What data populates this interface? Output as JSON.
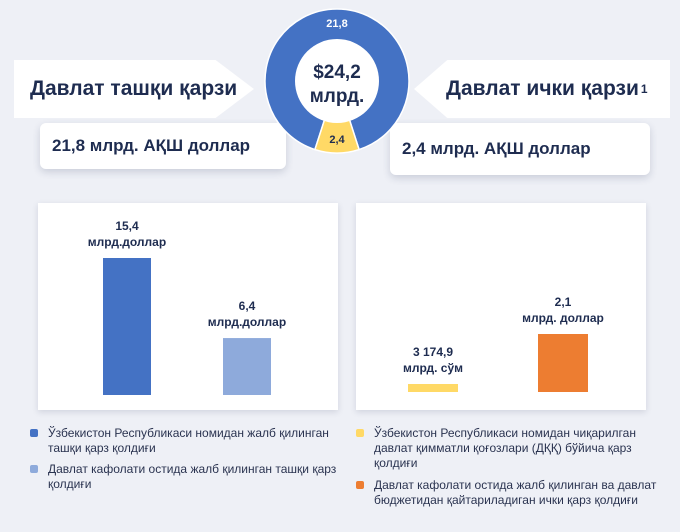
{
  "header": {
    "external_title": "Давлат ташқи қарзи",
    "internal_title": "Давлат ички қарзи",
    "internal_sup": "1",
    "external_amount": "21,8 млрд. АҚШ доллар",
    "internal_amount": "2,4 млрд. АҚШ доллар"
  },
  "colors": {
    "external_dark": "#4472c4",
    "external_light": "#8eaadb",
    "internal_yellow": "#ffd966",
    "internal_orange": "#ed7d31"
  },
  "chart_data": [
    {
      "type": "pie",
      "title": "",
      "center_label_line1": "$24,2",
      "center_label_line2": "млрд.",
      "slices": [
        {
          "label": "21,8",
          "value": 21.8,
          "color": "#4472c4"
        },
        {
          "label": "2,4",
          "value": 2.4,
          "color": "#ffd966"
        }
      ]
    },
    {
      "type": "bar",
      "title": "",
      "categories": [
        "Ўзбекистон Республикаси номидан жалб қилинган ташқи қарз қолдиғи",
        "Давлат кафолати остида жалб қилинган ташқи қарз қолдиғи"
      ],
      "values": [
        15.4,
        6.4
      ],
      "data_labels": [
        [
          "15,4",
          "млрд.доллар"
        ],
        [
          "6,4",
          "млрд.доллар"
        ]
      ],
      "colors": [
        "#4472c4",
        "#8eaadb"
      ],
      "ylim": [
        0,
        18
      ]
    },
    {
      "type": "bar",
      "title": "",
      "categories": [
        "Ўзбекистон Республикаси номидан чиқарилган давлат қимматли қоғозлари (ДҚҚ) бўйича қарз қолдиғи",
        "Давлат кафолати остида жалб қилинган ва давлат бюджетидан қайтариладиган ички қарз қолдиғи"
      ],
      "values": [
        3174.9,
        2.1
      ],
      "units": [
        "млрд. сўм",
        "млрд. доллар"
      ],
      "data_labels": [
        [
          "3 174,9",
          "млрд. сўм"
        ],
        [
          "2,1",
          "млрд. доллар"
        ]
      ],
      "colors": [
        "#ffd966",
        "#ed7d31"
      ]
    }
  ],
  "legend_left": [
    {
      "text": "Ўзбекистон Республикаси номидан жалб қилинган ташқи қарз қолдиғи",
      "color": "#4472c4"
    },
    {
      "text": "Давлат кафолати остида жалб қилинган ташқи қарз қолдиғи",
      "color": "#8eaadb"
    }
  ],
  "legend_right": [
    {
      "text": "Ўзбекистон Республикаси номидан чиқарилган давлат қимматли қоғозлари (ДҚҚ) бўйича қарз қолдиғи",
      "color": "#ffd966"
    },
    {
      "text": "Давлат кафолати остида жалб қилинган ва давлат бюджетидан қайтариладиган ички қарз қолдиғи",
      "color": "#ed7d31"
    }
  ]
}
